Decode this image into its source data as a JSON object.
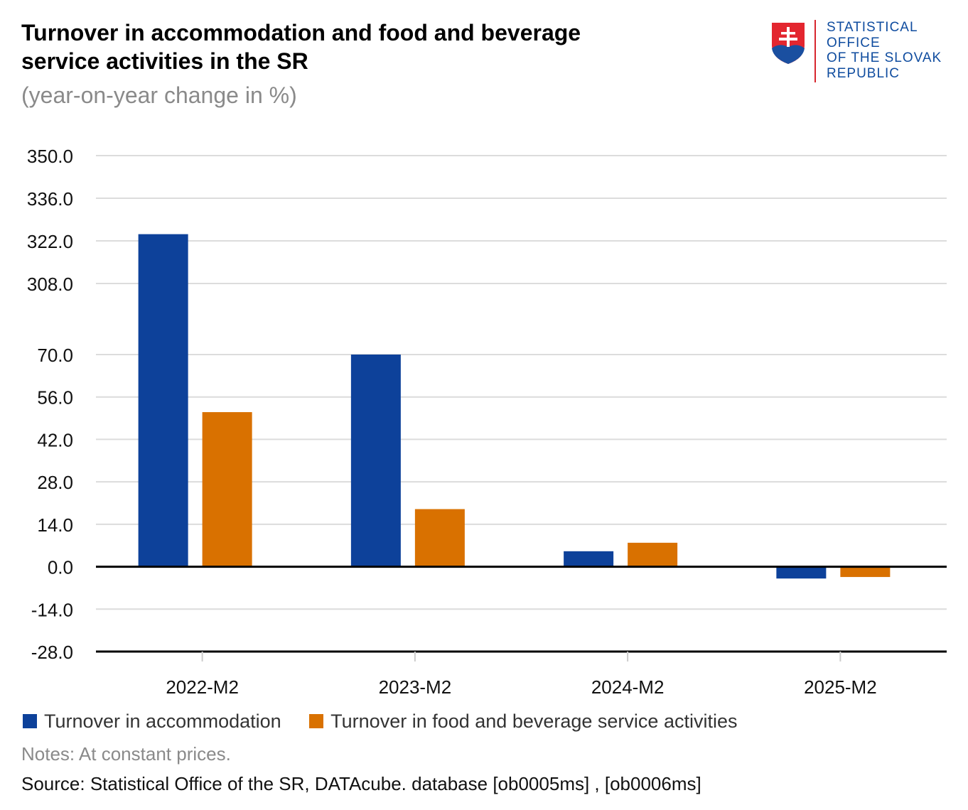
{
  "header": {
    "title_line1": "Turnover in accommodation and food and beverage",
    "title_line2": "service activities in the SR",
    "subtitle": "(year-on-year change in %)"
  },
  "logo": {
    "line1": "STATISTICAL",
    "line2": "OFFICE",
    "line3": "OF THE SLOVAK",
    "line4": "REPUBLIC",
    "colors": {
      "text": "#0f4c9f",
      "rule": "#d7262e",
      "shield_red": "#e3262f",
      "shield_blue": "#1a4fa0"
    }
  },
  "chart_data": {
    "type": "bar",
    "categories": [
      "2022-M2",
      "2023-M2",
      "2024-M2",
      "2025-M2"
    ],
    "series": [
      {
        "name": "Turnover in accommodation",
        "color": "#0d419a",
        "values": [
          324.2,
          70.0,
          5.1,
          -3.9
        ]
      },
      {
        "name": "Turnover in food and beverage service activities",
        "color": "#d97100",
        "values": [
          51.0,
          19.0,
          7.9,
          -3.4
        ]
      }
    ],
    "y_axis": {
      "broken": true,
      "lower_ticks": [
        "-28.0",
        "-14.0",
        "0.0",
        "14.0",
        "28.0",
        "42.0",
        "56.0",
        "70.0"
      ],
      "upper_ticks": [
        "308.0",
        "322.0",
        "336.0",
        "350.0"
      ],
      "lower_range": [
        -28,
        70
      ],
      "upper_range": [
        308,
        350
      ]
    },
    "grid": true,
    "legend_position": "bottom-left"
  },
  "footer": {
    "notes": "Notes: At constant prices.",
    "source": "Source: Statistical Office of the SR, DATAcube. database [ob0005ms] , [ob0006ms]"
  }
}
